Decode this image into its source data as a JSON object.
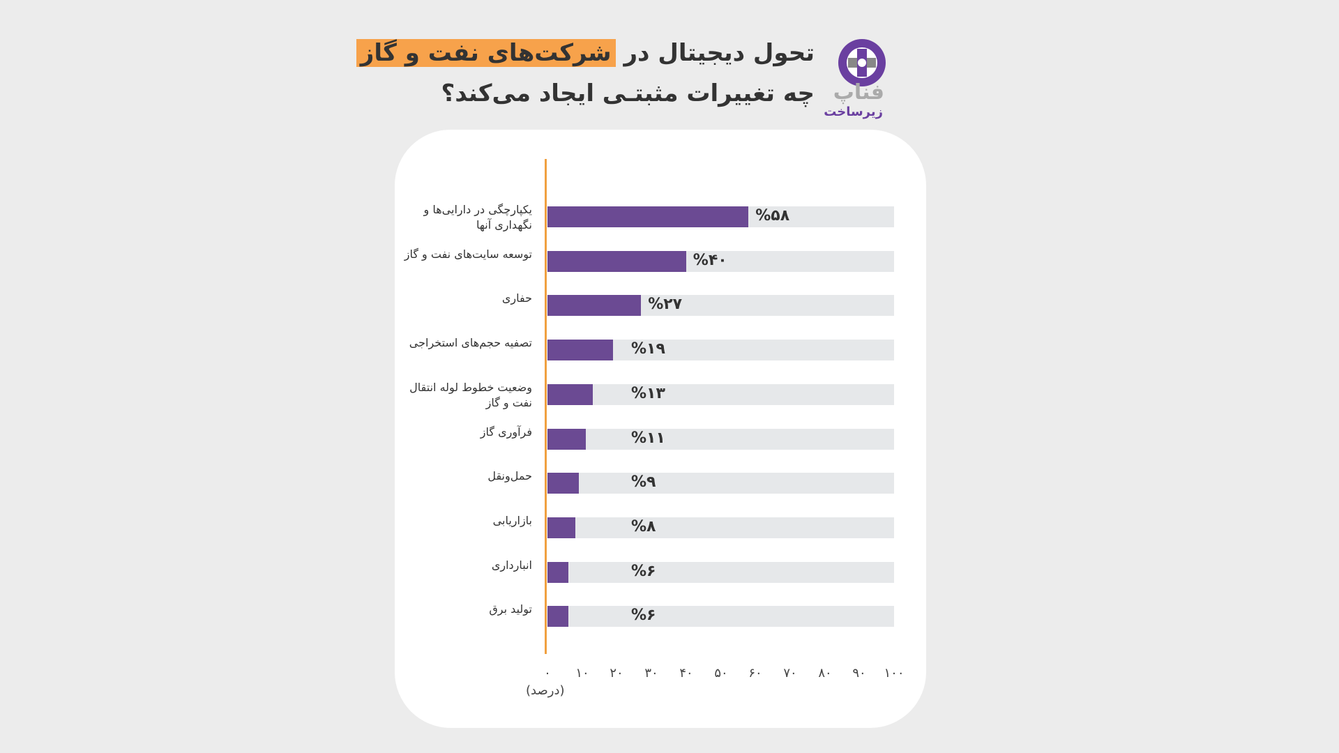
{
  "header": {
    "title_line1_part1": "تحول دیجیتال در",
    "title_line1_highlight": "شرکت‌های نفت و گاز",
    "title_line2": "چه تغییرات مثبتـی ایجاد می‌کند؟",
    "logo_text": "فناپ",
    "logo_sub": "زیرساخت",
    "highlight_color": "#f7a24b"
  },
  "chart_data": {
    "type": "bar",
    "orientation": "horizontal",
    "categories": [
      "یکپارچگی در دارایی‌ها و نگهداری آنها",
      "توسعه سایت‌های نفت و گاز",
      "حفاری",
      "تصفیه حجم‌های استخراجی",
      "وضعیت خطوط لوله انتقال نفت و گاز",
      "فرآوری گاز",
      "حمل‌ونقل",
      "بازاریابی",
      "انبارداری",
      "تولید برق"
    ],
    "values": [
      58,
      40,
      27,
      19,
      13,
      11,
      9,
      8,
      6,
      6
    ],
    "value_labels": [
      "%۵۸",
      "%۴۰",
      "%۲۷",
      "%۱۹",
      "%۱۳",
      "%۱۱",
      "%۹",
      "%۸",
      "%۶",
      "%۶"
    ],
    "x_ticks": [
      "۰",
      "۱۰",
      "۲۰",
      "۳۰",
      "۴۰",
      "۵۰",
      "۶۰",
      "۷۰",
      "۸۰",
      "۹۰",
      "۱۰۰"
    ],
    "xlabel": "(درصد)",
    "xlim": [
      0,
      100
    ],
    "bar_color": "#6b4a93",
    "track_color": "#e6e8ea",
    "axis_color": "#f0a040",
    "grid": false
  }
}
